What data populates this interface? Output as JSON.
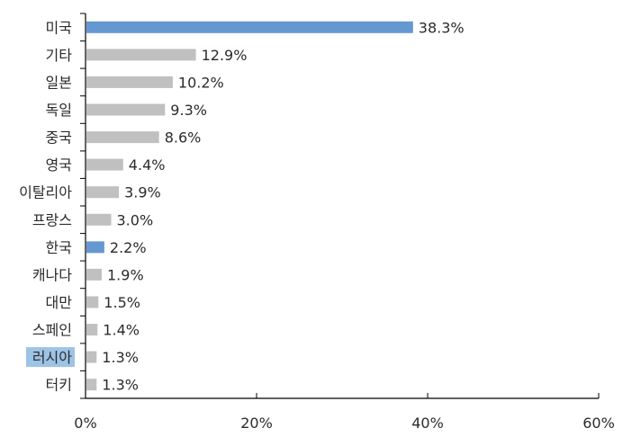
{
  "chart_data": {
    "type": "bar",
    "orientation": "horizontal",
    "title": "",
    "xlabel": "",
    "ylabel": "",
    "xlim": [
      0,
      60
    ],
    "x_ticks": [
      0,
      20,
      40,
      60
    ],
    "x_tick_labels": [
      "0%",
      "20%",
      "40%",
      "60%"
    ],
    "grid": false,
    "legend": "none",
    "categories": [
      "미국",
      "기타",
      "일본",
      "독일",
      "중국",
      "영국",
      "이탈리아",
      "프랑스",
      "한국",
      "캐나다",
      "대만",
      "스페인",
      "러시아",
      "터키"
    ],
    "values": [
      38.3,
      12.9,
      10.2,
      9.3,
      8.6,
      4.4,
      3.9,
      3.0,
      2.2,
      1.9,
      1.5,
      1.4,
      1.3,
      1.3
    ],
    "value_labels": [
      "38.3%",
      "12.9%",
      "10.2%",
      "9.3%",
      "8.6%",
      "4.4%",
      "3.9%",
      "3.0%",
      "2.2%",
      "1.9%",
      "1.5%",
      "1.4%",
      "1.3%",
      "1.3%"
    ],
    "highlighted_bars": [
      "미국",
      "한국"
    ],
    "highlighted_labels": [
      "러시아"
    ],
    "colors": {
      "bar_default": "#c0c0c0",
      "bar_highlight": "#6598d0",
      "label_highlight_bg": "#9dc3e6",
      "axis": "#000000",
      "text": "#2b2b2b"
    }
  }
}
